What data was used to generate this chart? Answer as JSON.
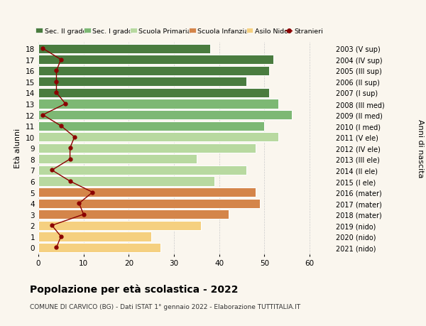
{
  "ages": [
    18,
    17,
    16,
    15,
    14,
    13,
    12,
    11,
    10,
    9,
    8,
    7,
    6,
    5,
    4,
    3,
    2,
    1,
    0
  ],
  "anni_nascita": [
    "2003 (V sup)",
    "2004 (IV sup)",
    "2005 (III sup)",
    "2006 (II sup)",
    "2007 (I sup)",
    "2008 (III med)",
    "2009 (II med)",
    "2010 (I med)",
    "2011 (V ele)",
    "2012 (IV ele)",
    "2013 (III ele)",
    "2014 (II ele)",
    "2015 (I ele)",
    "2016 (mater)",
    "2017 (mater)",
    "2018 (mater)",
    "2019 (nido)",
    "2020 (nido)",
    "2021 (nido)"
  ],
  "bar_values": [
    38,
    52,
    51,
    46,
    51,
    53,
    56,
    50,
    53,
    48,
    35,
    46,
    39,
    48,
    49,
    42,
    36,
    25,
    27
  ],
  "bar_colors": [
    "#4a7c3f",
    "#4a7c3f",
    "#4a7c3f",
    "#4a7c3f",
    "#4a7c3f",
    "#7db874",
    "#7db874",
    "#7db874",
    "#b8d9a0",
    "#b8d9a0",
    "#b8d9a0",
    "#b8d9a0",
    "#b8d9a0",
    "#d4854a",
    "#d4854a",
    "#d4854a",
    "#f5d080",
    "#f5d080",
    "#f5d080"
  ],
  "stranieri_values": [
    1,
    5,
    4,
    4,
    4,
    6,
    1,
    5,
    8,
    7,
    7,
    3,
    7,
    12,
    9,
    10,
    3,
    5,
    4
  ],
  "stranieri_color": "#8b0000",
  "legend_labels": [
    "Sec. II grado",
    "Sec. I grado",
    "Scuola Primaria",
    "Scuola Infanzia",
    "Asilo Nido",
    "Stranieri"
  ],
  "legend_colors": [
    "#4a7c3f",
    "#7db874",
    "#b8d9a0",
    "#d4854a",
    "#f5d080",
    "#8b0000"
  ],
  "title": "Popolazione per età scolastica - 2022",
  "subtitle": "COMUNE DI CARVICO (BG) - Dati ISTAT 1° gennaio 2022 - Elaborazione TUTTITALIA.IT",
  "ylabel_left": "Età alunni",
  "ylabel_right": "Anni di nascita",
  "xlim": [
    0,
    65
  ],
  "background_color": "#faf6ee",
  "grid_color": "#cccccc",
  "bar_height": 0.85
}
